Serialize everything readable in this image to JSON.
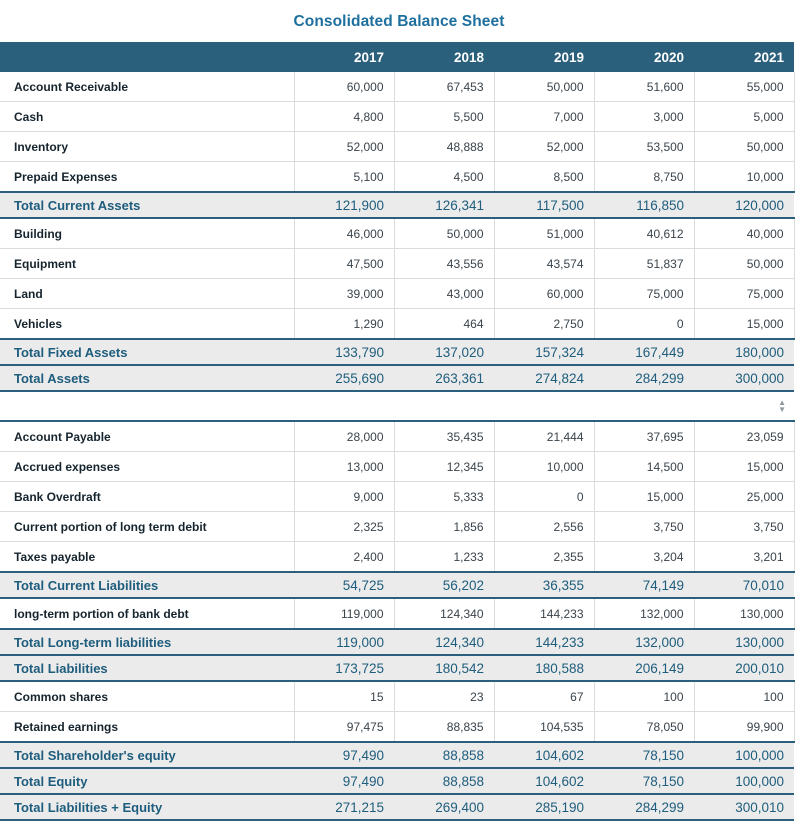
{
  "title": "Consolidated Balance Sheet",
  "columns": [
    "2017",
    "2018",
    "2019",
    "2020",
    "2021"
  ],
  "assets": {
    "rows": [
      {
        "label": "Account Receivable",
        "type": "item",
        "values": [
          "60,000",
          "67,453",
          "50,000",
          "51,600",
          "55,000"
        ]
      },
      {
        "label": "Cash",
        "type": "item",
        "values": [
          "4,800",
          "5,500",
          "7,000",
          "3,000",
          "5,000"
        ]
      },
      {
        "label": "Inventory",
        "type": "item",
        "values": [
          "52,000",
          "48,888",
          "52,000",
          "53,500",
          "50,000"
        ]
      },
      {
        "label": "Prepaid Expenses",
        "type": "item",
        "values": [
          "5,100",
          "4,500",
          "8,500",
          "8,750",
          "10,000"
        ]
      },
      {
        "label": "Total Current Assets",
        "type": "total",
        "values": [
          "121,900",
          "126,341",
          "117,500",
          "116,850",
          "120,000"
        ]
      },
      {
        "label": "Building",
        "type": "item",
        "values": [
          "46,000",
          "50,000",
          "51,000",
          "40,612",
          "40,000"
        ]
      },
      {
        "label": "Equipment",
        "type": "item",
        "values": [
          "47,500",
          "43,556",
          "43,574",
          "51,837",
          "50,000"
        ]
      },
      {
        "label": "Land",
        "type": "item",
        "values": [
          "39,000",
          "43,000",
          "60,000",
          "75,000",
          "75,000"
        ]
      },
      {
        "label": "Vehicles",
        "type": "item",
        "values": [
          "1,290",
          "464",
          "2,750",
          "0",
          "15,000"
        ]
      },
      {
        "label": "Total Fixed Assets",
        "type": "total",
        "values": [
          "133,790",
          "137,020",
          "157,324",
          "167,449",
          "180,000"
        ]
      },
      {
        "label": "Total Assets",
        "type": "total",
        "values": [
          "255,690",
          "263,361",
          "274,824",
          "284,299",
          "300,000"
        ]
      }
    ]
  },
  "liabilities": {
    "rows": [
      {
        "label": "Account Payable",
        "type": "item",
        "values": [
          "28,000",
          "35,435",
          "21,444",
          "37,695",
          "23,059"
        ]
      },
      {
        "label": "Accrued expenses",
        "type": "item",
        "values": [
          "13,000",
          "12,345",
          "10,000",
          "14,500",
          "15,000"
        ]
      },
      {
        "label": "Bank Overdraft",
        "type": "item",
        "values": [
          "9,000",
          "5,333",
          "0",
          "15,000",
          "25,000"
        ]
      },
      {
        "label": "Current portion of long term debit",
        "type": "item",
        "values": [
          "2,325",
          "1,856",
          "2,556",
          "3,750",
          "3,750"
        ]
      },
      {
        "label": "Taxes payable",
        "type": "item",
        "values": [
          "2,400",
          "1,233",
          "2,355",
          "3,204",
          "3,201"
        ]
      },
      {
        "label": "Total Current Liabilities",
        "type": "total",
        "values": [
          "54,725",
          "56,202",
          "36,355",
          "74,149",
          "70,010"
        ]
      },
      {
        "label": "long-term portion of bank debt",
        "type": "item",
        "values": [
          "119,000",
          "124,340",
          "144,233",
          "132,000",
          "130,000"
        ]
      },
      {
        "label": "Total Long-term liabilities",
        "type": "total",
        "values": [
          "119,000",
          "124,340",
          "144,233",
          "132,000",
          "130,000"
        ]
      },
      {
        "label": "Total Liabilities",
        "type": "total",
        "values": [
          "173,725",
          "180,542",
          "180,588",
          "206,149",
          "200,010"
        ]
      },
      {
        "label": "Common shares",
        "type": "item",
        "values": [
          "15",
          "23",
          "67",
          "100",
          "100"
        ]
      },
      {
        "label": "Retained earnings",
        "type": "item",
        "values": [
          "97,475",
          "88,835",
          "104,535",
          "78,050",
          "99,900"
        ]
      },
      {
        "label": "Total Shareholder's equity",
        "type": "total",
        "values": [
          "97,490",
          "88,858",
          "104,602",
          "78,150",
          "100,000"
        ]
      },
      {
        "label": "Total Equity",
        "type": "total",
        "values": [
          "97,490",
          "88,858",
          "104,602",
          "78,150",
          "100,000"
        ]
      },
      {
        "label": "Total Liabilities + Equity",
        "type": "total",
        "values": [
          "271,215",
          "269,400",
          "285,190",
          "284,299",
          "300,010"
        ]
      }
    ]
  },
  "scrollbar": {
    "up_icon": "▲",
    "down_icon": "▼"
  },
  "colors": {
    "header_bg": "#2b607c",
    "title": "#1d6f9e",
    "total_text": "#1e5d7d",
    "label_text": "#16242e",
    "value_text": "#3a434b",
    "grid_line": "#d9dcde",
    "total_row_bg": "#ebebeb",
    "scroll_arrow": "#8f979c"
  }
}
